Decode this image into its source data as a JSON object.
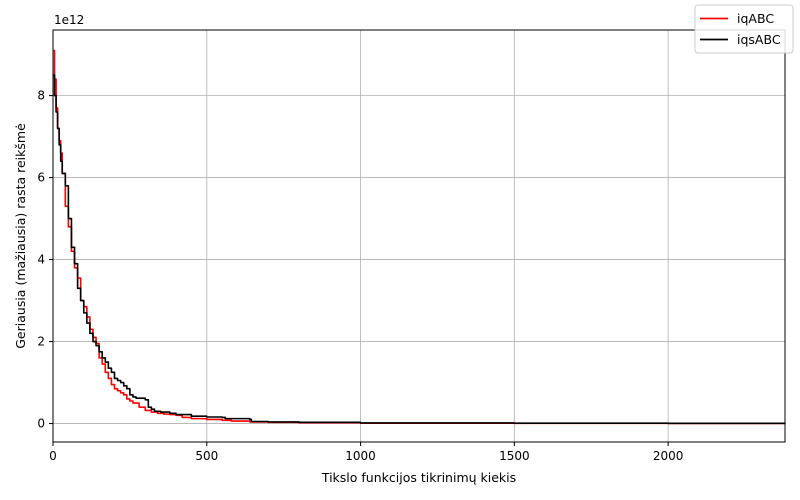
{
  "chart_data": {
    "type": "line",
    "title": "",
    "xlabel": "Tikslo funkcijos tikrinimų kiekis",
    "ylabel": "Geriausia (mažiausia) rasta reikšmė",
    "y_offset_label": "1e12",
    "xlim": [
      0,
      2380
    ],
    "ylim": [
      -0.45,
      9.6
    ],
    "y_scale_factor": 1000000000000.0,
    "x_ticks": [
      0,
      500,
      1000,
      1500,
      2000
    ],
    "x_tick_labels": [
      "0",
      "500",
      "1000",
      "1500",
      "2000"
    ],
    "y_ticks": [
      0,
      2,
      4,
      6,
      8
    ],
    "y_tick_labels": [
      "0",
      "2",
      "4",
      "6",
      "8"
    ],
    "grid": true,
    "legend_position": "top-right",
    "series": [
      {
        "name": "iqABC",
        "color": "#ff0000",
        "x": [
          0,
          5,
          10,
          15,
          20,
          25,
          30,
          40,
          50,
          60,
          70,
          80,
          90,
          100,
          110,
          120,
          130,
          140,
          150,
          160,
          170,
          180,
          190,
          200,
          210,
          220,
          230,
          240,
          250,
          260,
          280,
          300,
          320,
          340,
          360,
          380,
          400,
          420,
          450,
          500,
          550,
          580,
          640,
          700,
          800,
          1000,
          1500,
          2000,
          2380
        ],
        "y": [
          9.1,
          8.4,
          7.7,
          7.2,
          6.9,
          6.6,
          6.1,
          5.3,
          4.8,
          4.2,
          3.8,
          3.55,
          3.0,
          2.85,
          2.6,
          2.3,
          2.1,
          1.95,
          1.6,
          1.45,
          1.25,
          1.1,
          0.95,
          0.85,
          0.8,
          0.75,
          0.7,
          0.6,
          0.55,
          0.5,
          0.4,
          0.32,
          0.28,
          0.25,
          0.23,
          0.22,
          0.2,
          0.15,
          0.12,
          0.1,
          0.08,
          0.06,
          0.04,
          0.03,
          0.02,
          0.01,
          0.005,
          0.003,
          0.002
        ]
      },
      {
        "name": "iqsABC",
        "color": "#000000",
        "x": [
          0,
          5,
          10,
          15,
          20,
          25,
          30,
          40,
          50,
          60,
          70,
          80,
          90,
          100,
          110,
          120,
          130,
          140,
          150,
          160,
          170,
          180,
          190,
          200,
          210,
          220,
          230,
          240,
          250,
          260,
          270,
          300,
          310,
          320,
          330,
          350,
          380,
          400,
          450,
          500,
          550,
          560,
          640,
          645,
          700,
          800,
          1000,
          1500,
          2000,
          2380
        ],
        "y": [
          8.5,
          8.0,
          7.6,
          7.2,
          6.8,
          6.4,
          6.1,
          5.8,
          5.0,
          4.3,
          3.9,
          3.3,
          3.0,
          2.7,
          2.45,
          2.2,
          2.0,
          1.9,
          1.75,
          1.6,
          1.5,
          1.35,
          1.25,
          1.1,
          1.05,
          1.0,
          0.92,
          0.85,
          0.7,
          0.65,
          0.62,
          0.58,
          0.4,
          0.35,
          0.3,
          0.28,
          0.25,
          0.22,
          0.18,
          0.16,
          0.15,
          0.12,
          0.1,
          0.05,
          0.04,
          0.03,
          0.015,
          0.008,
          0.005,
          0.004
        ]
      }
    ]
  }
}
